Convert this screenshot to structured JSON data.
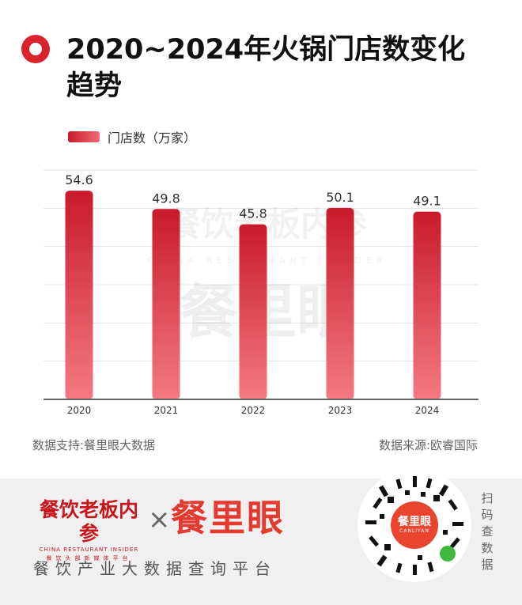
{
  "title": "2020~2024年火锅门店数变化趋势",
  "legend_label": "门店数（万家）",
  "source_left": "数据支持:餐里眼大数据",
  "source_right": "数据来源:欧睿国际",
  "watermark": {
    "brand_cn": "餐饮老板内参",
    "brand_en": "CHINA RESTAURANT INSIDER",
    "big": "餐里眼"
  },
  "chart_data": {
    "type": "bar",
    "categories": [
      "2020",
      "2021",
      "2022",
      "2023",
      "2024"
    ],
    "series": [
      {
        "name": "门店数（万家）",
        "values": [
          54.6,
          49.8,
          45.8,
          50.1,
          49.1
        ]
      }
    ],
    "ylim": [
      0,
      60
    ],
    "grid": true,
    "legend_placement": "top-left",
    "bar_color_top": "#c81a2b",
    "bar_color_bottom": "#f47a80"
  },
  "footer": {
    "brand1_cn": "餐饮老板内参",
    "brand1_en": "CHINA RESTAURANT INSIDER",
    "brand1_sub": "餐饮头部新媒体平台",
    "times": "×",
    "brand2": "餐里眼",
    "tagline": "餐饮产业大数据查询平台",
    "qr_center_cn": "餐里眼",
    "qr_center_en": "CANLIYAN",
    "scan_text": "扫码查数据"
  },
  "colors": {
    "accent_red": "#d8232d",
    "brand_orange": "#e53a2f",
    "footer_bg": "#f0f0f0"
  }
}
